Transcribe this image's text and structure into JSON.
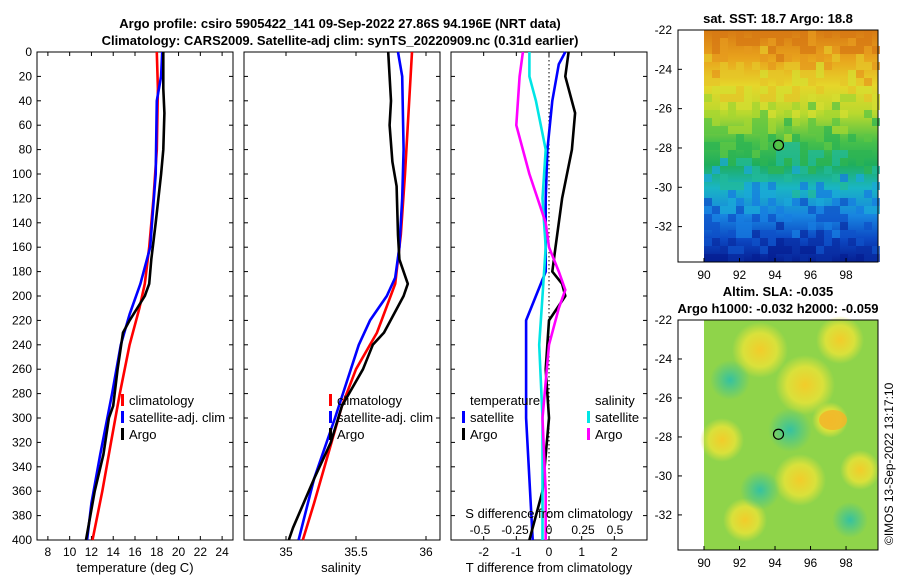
{
  "header": {
    "line1": "Argo profile: csiro 5905422_141 09-Sep-2022 27.86S 94.196E (NRT data)",
    "line2": "Climatology: CARS2009. Satellite-adj clim: synTS_20220909.nc (0.31d earlier)"
  },
  "colors": {
    "climatology": "#ff0000",
    "satellite": "#0000ff",
    "argo": "#000000",
    "sal_satellite": "#00e5e5",
    "sal_argo": "#ff00ff"
  },
  "chart_data": [
    {
      "type": "line",
      "panel": "temperature",
      "xlabel": "temperature (deg C)",
      "ylabel": "",
      "xlim": [
        7,
        25
      ],
      "ylim": [
        400,
        0
      ],
      "xticks": [
        8,
        10,
        12,
        14,
        16,
        18,
        20,
        22,
        24
      ],
      "yticks": [
        0,
        20,
        40,
        60,
        80,
        100,
        120,
        140,
        160,
        180,
        200,
        220,
        240,
        260,
        280,
        300,
        320,
        340,
        360,
        380,
        400
      ],
      "legend": [
        "climatology",
        "satellite-adj. clim",
        "Argo"
      ],
      "series": [
        {
          "name": "climatology",
          "points": [
            [
              18.0,
              0
            ],
            [
              18.1,
              30
            ],
            [
              18.0,
              80
            ],
            [
              17.7,
              120
            ],
            [
              17.3,
              160
            ],
            [
              16.9,
              190
            ],
            [
              16.4,
              210
            ],
            [
              15.5,
              240
            ],
            [
              14.6,
              280
            ],
            [
              13.8,
              320
            ],
            [
              13.0,
              360
            ],
            [
              12.1,
              400
            ]
          ]
        },
        {
          "name": "satellite-adj. clim",
          "points": [
            [
              18.5,
              0
            ],
            [
              18.4,
              20
            ],
            [
              18.0,
              40
            ],
            [
              17.9,
              100
            ],
            [
              17.4,
              160
            ],
            [
              16.5,
              190
            ],
            [
              15.5,
              215
            ],
            [
              14.7,
              240
            ],
            [
              13.9,
              280
            ],
            [
              12.8,
              330
            ],
            [
              12.0,
              370
            ],
            [
              11.6,
              400
            ]
          ]
        },
        {
          "name": "Argo",
          "points": [
            [
              18.6,
              0
            ],
            [
              18.6,
              30
            ],
            [
              18.7,
              50
            ],
            [
              18.6,
              80
            ],
            [
              18.4,
              100
            ],
            [
              17.9,
              140
            ],
            [
              17.5,
              170
            ],
            [
              17.3,
              190
            ],
            [
              16.9,
              200
            ],
            [
              15.5,
              220
            ],
            [
              14.9,
              230
            ],
            [
              14.4,
              260
            ],
            [
              14.0,
              290
            ],
            [
              13.6,
              300
            ],
            [
              13.1,
              330
            ],
            [
              12.3,
              360
            ],
            [
              11.5,
              400
            ]
          ]
        }
      ]
    },
    {
      "type": "line",
      "panel": "salinity",
      "xlabel": "salinity",
      "ylabel": "",
      "xlim": [
        34.7,
        36.1
      ],
      "ylim": [
        400,
        0
      ],
      "xticks": [
        35,
        35.5,
        36
      ],
      "legend": [
        "climatology",
        "satellite-adj. clim",
        "Argo"
      ],
      "series": [
        {
          "name": "climatology",
          "points": [
            [
              35.9,
              0
            ],
            [
              35.89,
              20
            ],
            [
              35.87,
              60
            ],
            [
              35.85,
              100
            ],
            [
              35.82,
              150
            ],
            [
              35.78,
              190
            ],
            [
              35.65,
              230
            ],
            [
              35.5,
              260
            ],
            [
              35.4,
              290
            ],
            [
              35.3,
              330
            ],
            [
              35.2,
              370
            ],
            [
              35.12,
              400
            ]
          ]
        },
        {
          "name": "satellite-adj. clim",
          "points": [
            [
              35.8,
              0
            ],
            [
              35.83,
              20
            ],
            [
              35.84,
              80
            ],
            [
              35.83,
              120
            ],
            [
              35.81,
              160
            ],
            [
              35.78,
              185
            ],
            [
              35.72,
              200
            ],
            [
              35.6,
              220
            ],
            [
              35.52,
              240
            ],
            [
              35.35,
              300
            ],
            [
              35.2,
              350
            ],
            [
              35.09,
              400
            ]
          ]
        },
        {
          "name": "Argo",
          "points": [
            [
              35.73,
              0
            ],
            [
              35.75,
              40
            ],
            [
              35.74,
              60
            ],
            [
              35.76,
              90
            ],
            [
              35.79,
              110
            ],
            [
              35.8,
              150
            ],
            [
              35.81,
              170
            ],
            [
              35.87,
              190
            ],
            [
              35.84,
              200
            ],
            [
              35.7,
              230
            ],
            [
              35.62,
              240
            ],
            [
              35.55,
              260
            ],
            [
              35.4,
              290
            ],
            [
              35.32,
              320
            ],
            [
              35.2,
              350
            ],
            [
              35.05,
              390
            ],
            [
              35.02,
              400
            ]
          ]
        }
      ]
    },
    {
      "type": "line",
      "panel": "difference",
      "xlabel": "T difference from climatology",
      "top_label": "S difference from climatology",
      "xlim": [
        -3,
        3
      ],
      "ylim": [
        400,
        0
      ],
      "xticks": [
        -2,
        -1,
        0,
        1,
        2
      ],
      "top_ticks": [
        "-0.5",
        "-0.25",
        "0",
        "0.25",
        "0.5"
      ],
      "legend_titles": [
        "temperature",
        "salinity"
      ],
      "legend_left": [
        "satellite",
        "Argo"
      ],
      "legend_right": [
        "satellite",
        "Argo"
      ],
      "series": [
        {
          "name": "temperature satellite",
          "points": [
            [
              0.5,
              0
            ],
            [
              0.3,
              10
            ],
            [
              0.1,
              40
            ],
            [
              -0.05,
              80
            ],
            [
              -0.1,
              120
            ],
            [
              -0.1,
              180
            ],
            [
              -0.4,
              200
            ],
            [
              -0.7,
              220
            ],
            [
              -0.7,
              300
            ],
            [
              -0.5,
              400
            ]
          ]
        },
        {
          "name": "temperature Argo",
          "points": [
            [
              0.6,
              0
            ],
            [
              0.5,
              20
            ],
            [
              0.8,
              50
            ],
            [
              0.7,
              80
            ],
            [
              0.4,
              120
            ],
            [
              0.2,
              160
            ],
            [
              0.1,
              180
            ],
            [
              0.4,
              190
            ],
            [
              0.5,
              200
            ],
            [
              0.0,
              220
            ],
            [
              -0.1,
              260
            ],
            [
              0.0,
              300
            ],
            [
              -0.2,
              360
            ],
            [
              -0.6,
              400
            ]
          ]
        },
        {
          "name": "salinity satellite",
          "points": [
            [
              -0.6,
              0
            ],
            [
              -0.6,
              20
            ],
            [
              -0.4,
              40
            ],
            [
              -0.1,
              80
            ],
            [
              -0.2,
              120
            ],
            [
              -0.1,
              160
            ],
            [
              -0.2,
              200
            ],
            [
              -0.3,
              240
            ],
            [
              -0.2,
              300
            ],
            [
              -0.2,
              400
            ]
          ]
        },
        {
          "name": "salinity Argo",
          "points": [
            [
              -0.8,
              0
            ],
            [
              -0.9,
              20
            ],
            [
              -1.0,
              60
            ],
            [
              -0.6,
              100
            ],
            [
              -0.1,
              140
            ],
            [
              0.0,
              160
            ],
            [
              0.3,
              180
            ],
            [
              0.5,
              195
            ],
            [
              0.3,
              210
            ],
            [
              0.0,
              240
            ],
            [
              -0.2,
              300
            ],
            [
              -0.1,
              360
            ],
            [
              -0.1,
              400
            ]
          ]
        }
      ]
    },
    {
      "type": "heatmap",
      "panel": "sst-map",
      "title": "sat. SST: 18.7 Argo: 18.8",
      "xticks": [
        "90",
        "92",
        "94",
        "96",
        "98"
      ],
      "yticks": [
        "-22",
        "-24",
        "-26",
        "-28",
        "-30",
        "-32"
      ],
      "argo_position": {
        "lon": 94.196,
        "lat": -27.86
      }
    },
    {
      "type": "heatmap",
      "panel": "sla-map",
      "title_line1": "Altim. SLA: -0.035",
      "title_line2": "Argo h1000: -0.032 h2000: -0.059",
      "xticks": [
        "90",
        "92",
        "94",
        "96",
        "98"
      ],
      "yticks": [
        "-22",
        "-24",
        "-26",
        "-28",
        "-30",
        "-32"
      ],
      "argo_position": {
        "lon": 94.196,
        "lat": -27.86
      },
      "side_label": "©IMOS 13-Sep-2022 13:17:10"
    }
  ]
}
